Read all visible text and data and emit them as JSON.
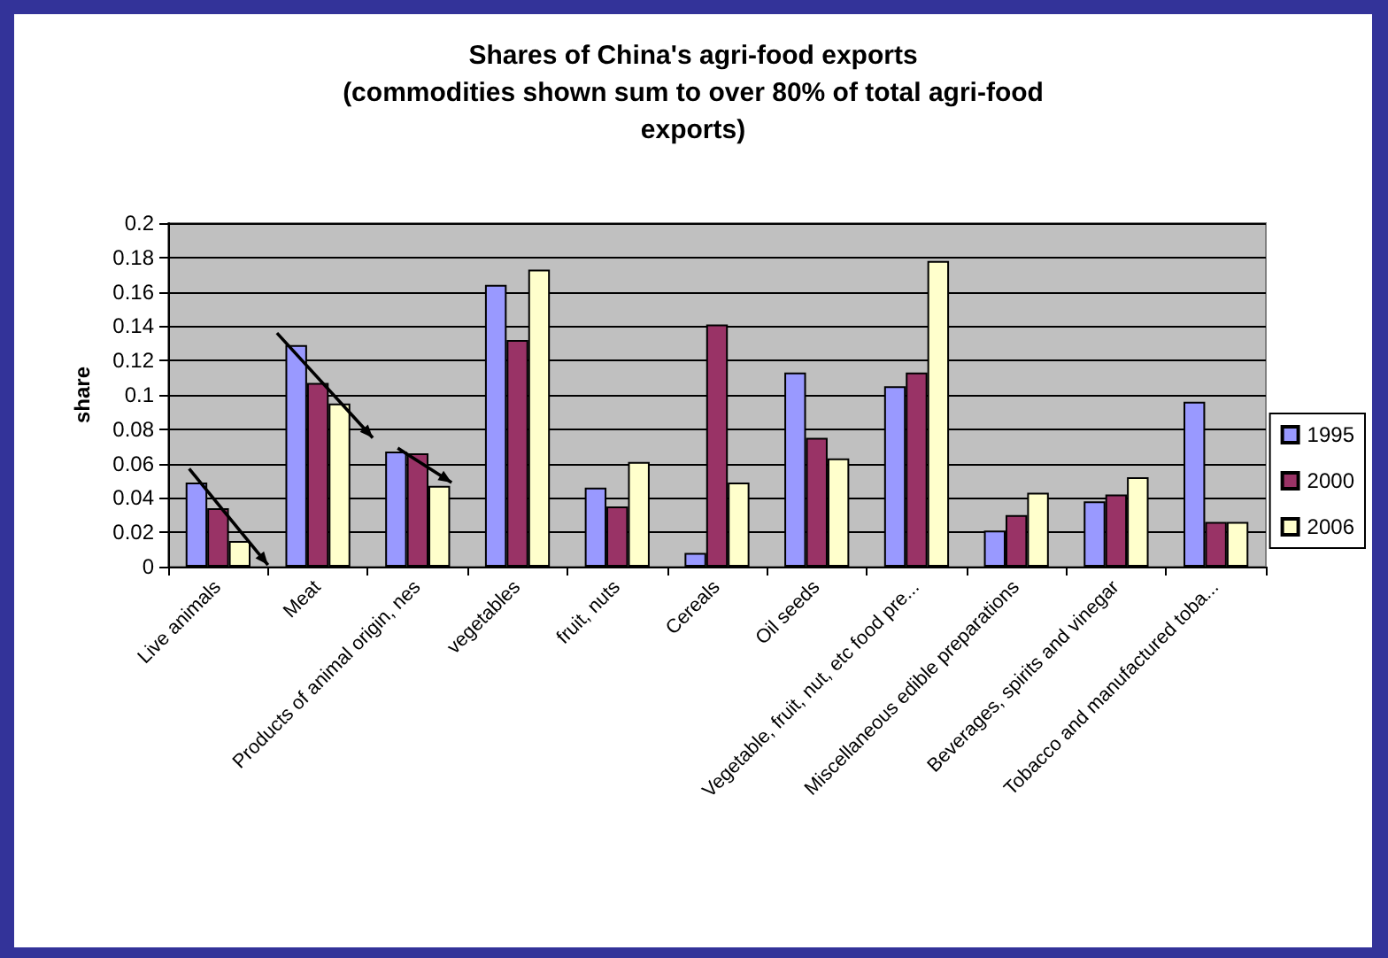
{
  "chart_data": {
    "type": "bar",
    "title": "Shares of China's agri-food exports\n(commodities shown sum to over 80% of total agri-food\nexports)",
    "ylabel": "share",
    "categories": [
      "Live animals",
      "Meat",
      "Products of animal origin, nes",
      "vegetables",
      "fruit, nuts",
      "Cereals",
      "Oil seeds",
      "Vegetable, fruit, nut, etc food pre...",
      "Miscellaneous edible preparations",
      "Beverages, spirits and vinegar",
      "Tobacco and manufactured toba..."
    ],
    "series": [
      {
        "name": "1995",
        "color": "#9999ff",
        "values": [
          0.049,
          0.129,
          0.067,
          0.164,
          0.046,
          0.008,
          0.113,
          0.105,
          0.021,
          0.038,
          0.096
        ]
      },
      {
        "name": "2000",
        "color": "#993366",
        "values": [
          0.034,
          0.107,
          0.066,
          0.132,
          0.035,
          0.141,
          0.075,
          0.113,
          0.03,
          0.042,
          0.026
        ]
      },
      {
        "name": "2006",
        "color": "#ffffcc",
        "values": [
          0.015,
          0.095,
          0.047,
          0.173,
          0.061,
          0.049,
          0.063,
          0.178,
          0.043,
          0.052,
          0.026
        ]
      }
    ],
    "ylim": [
      0,
      0.2
    ],
    "yticks": [
      0,
      0.02,
      0.04,
      0.06,
      0.08,
      0.1,
      0.12,
      0.14,
      0.16,
      0.18,
      0.2
    ],
    "grid": "y",
    "legend": "right"
  }
}
